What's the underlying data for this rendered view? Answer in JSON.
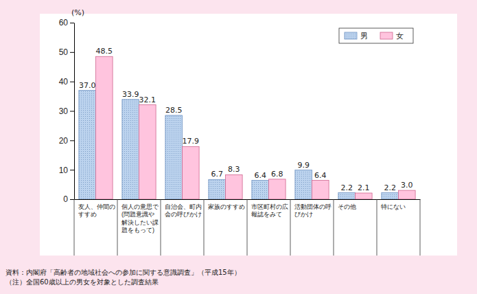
{
  "chart_data": {
    "type": "bar",
    "y_label": "(%)",
    "categories": [
      "友人、仲間のすすめ",
      "個人の意思で(問題意識や解決したい課題をもって)",
      "自治会、町内会の呼びかけ",
      "家族のすすめ",
      "市区町村の広報誌をみて",
      "活動団体の呼びかけ",
      "その他",
      "特にない"
    ],
    "series": [
      {
        "name": "男",
        "color": "#bcd3ee",
        "values": [
          37.0,
          33.9,
          28.5,
          6.7,
          6.4,
          9.9,
          2.2,
          2.2
        ],
        "value_labels": [
          "37.0",
          "33.9",
          "28.5",
          "6.7",
          "6.4",
          "9.9",
          "2.2",
          "2.2"
        ]
      },
      {
        "name": "女",
        "color": "#ffc4de",
        "values": [
          48.5,
          32.1,
          17.9,
          8.3,
          6.8,
          6.4,
          2.1,
          3.0
        ],
        "value_labels": [
          "48.5",
          "32.1",
          "17.9",
          "8.3",
          "6.8",
          "6.4",
          "2.1",
          "3.0"
        ]
      }
    ],
    "ylim": [
      0,
      60
    ],
    "yticks": [
      0,
      10,
      20,
      30,
      40,
      50,
      60
    ],
    "grid": false,
    "legend": "upper right",
    "data_labels": true,
    "annotations": [
      "資料：内閣府「高齢者の地域社会への参加に関する意識調査」（平成15年）",
      "（注）全国60歳以上の男女を対象とした調査結果"
    ]
  }
}
